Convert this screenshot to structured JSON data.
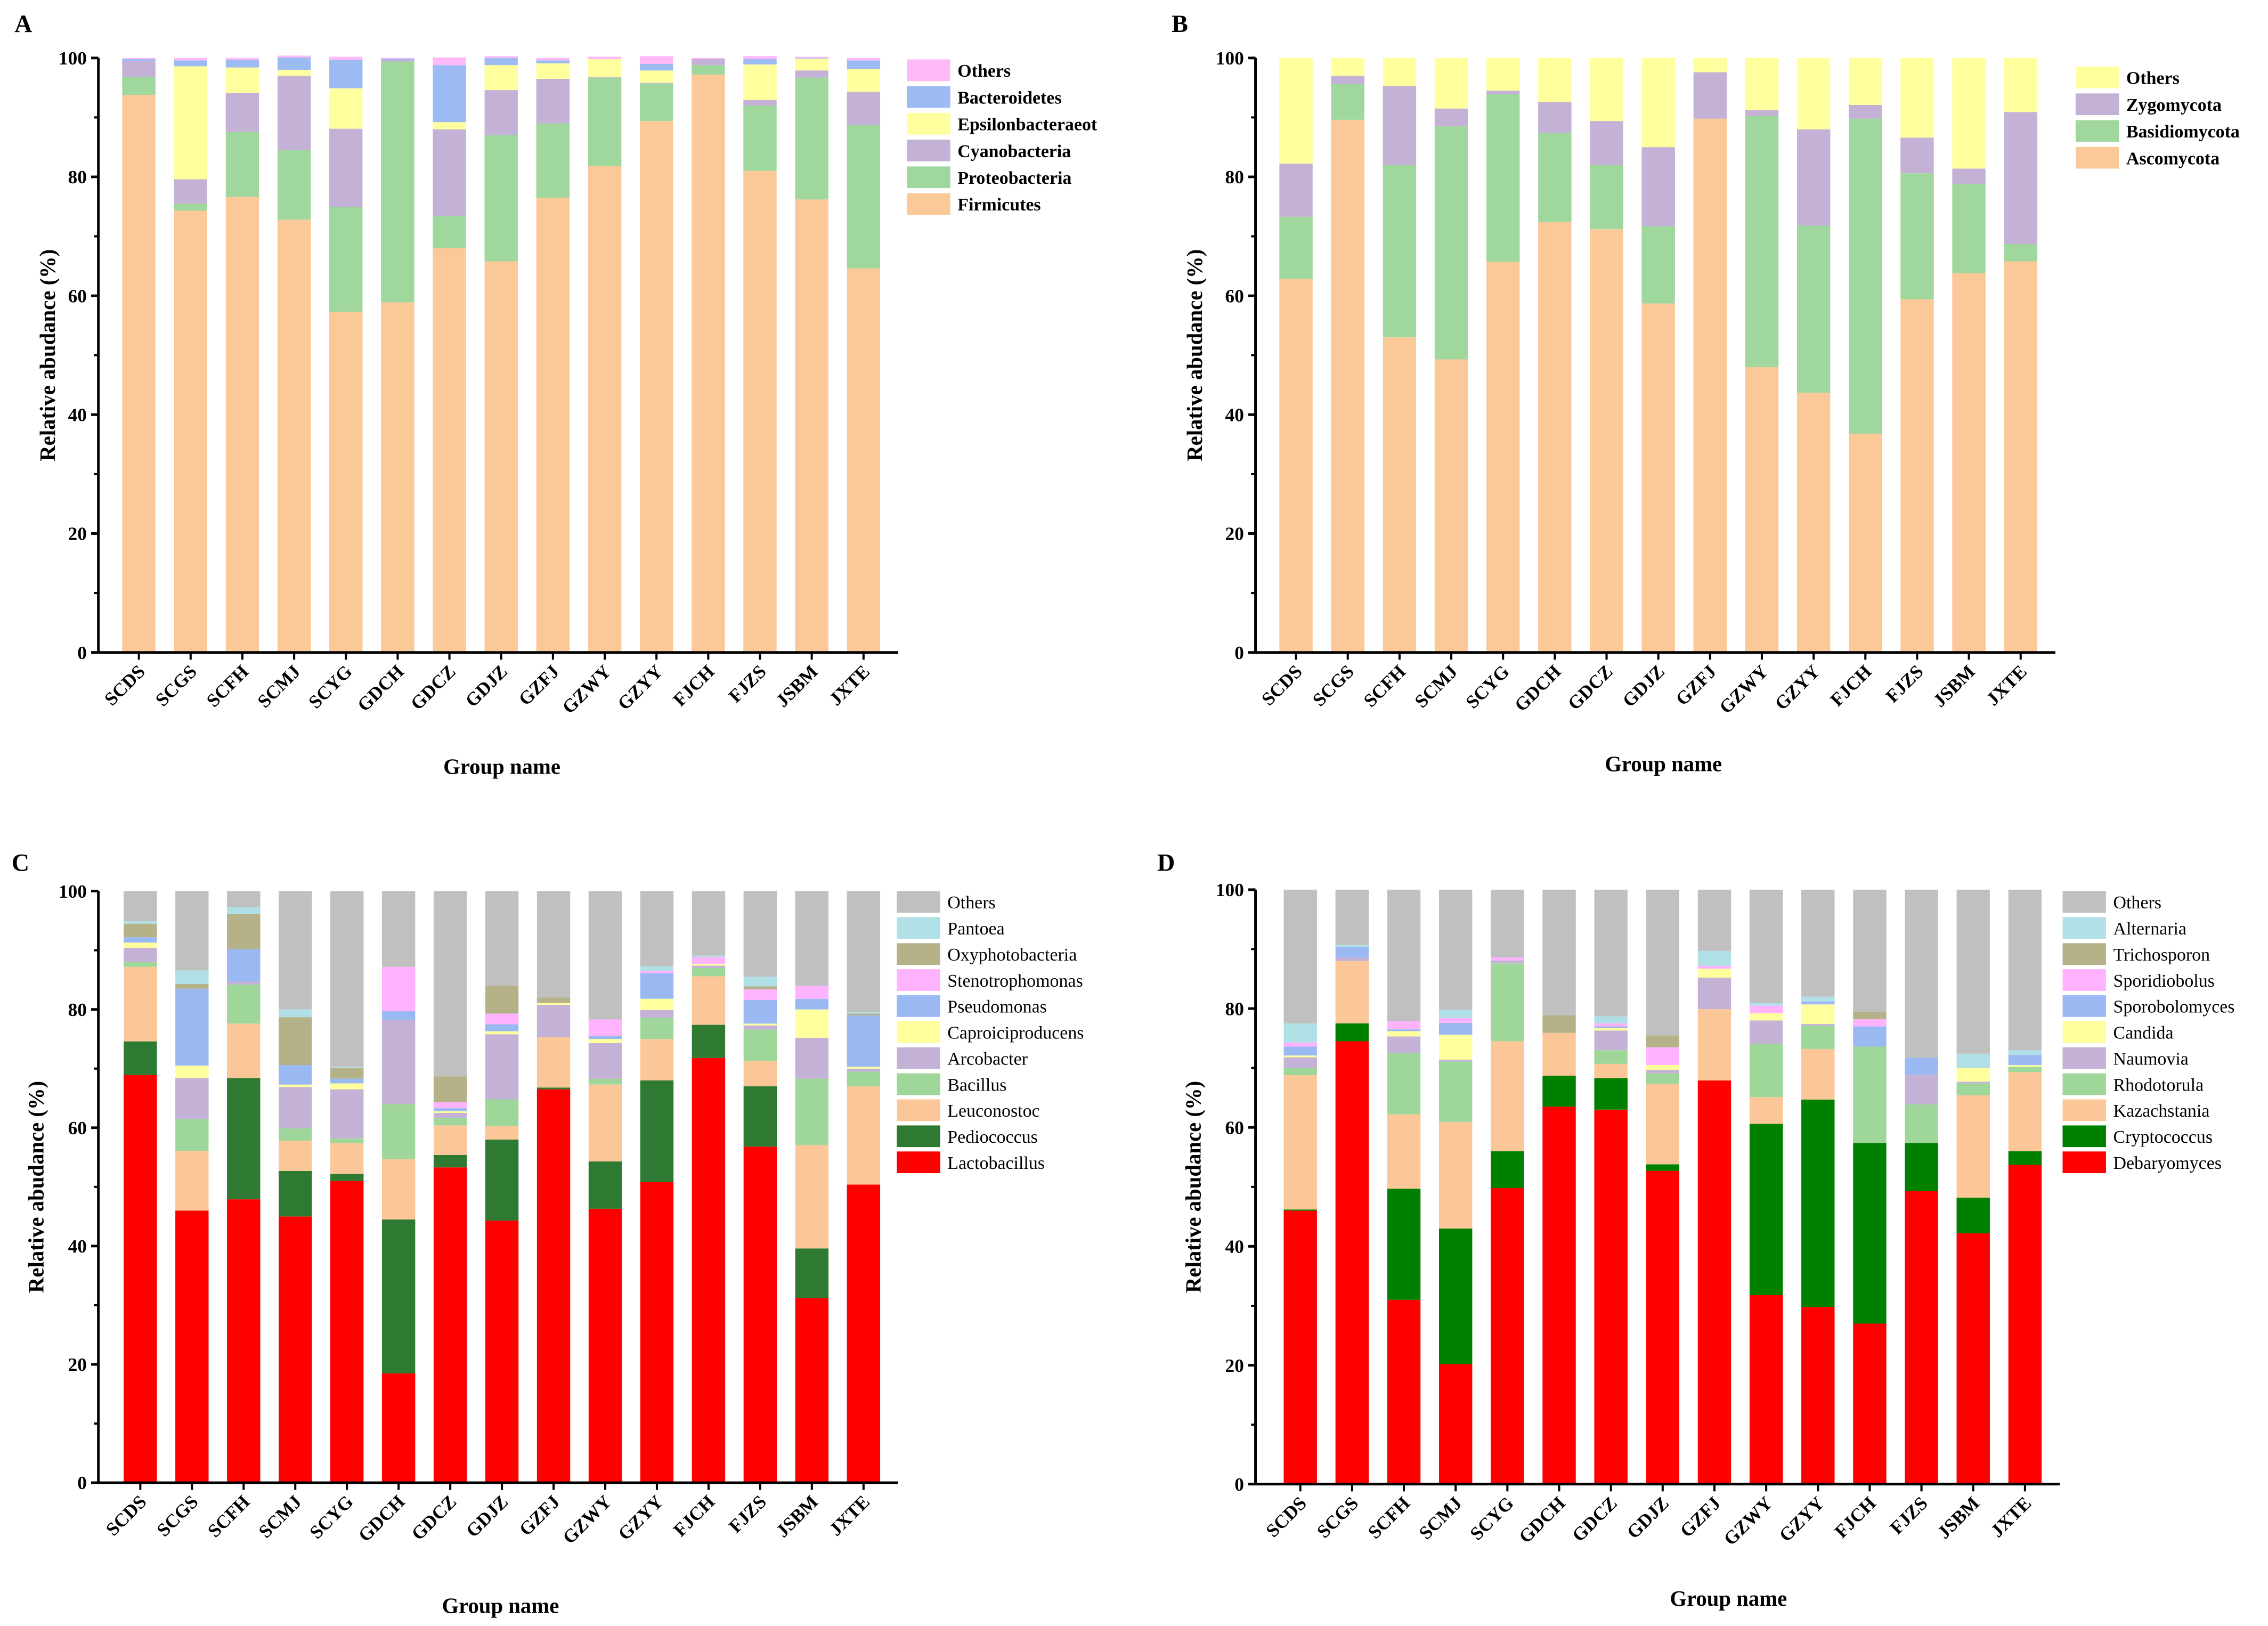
{
  "chart_data": [
    {
      "panel": "A",
      "type": "bar",
      "stacked": true,
      "xlabel": "Group name",
      "ylabel": "Relative abudance (%)",
      "ylim": [
        0,
        100
      ],
      "yticks": [
        0,
        20,
        40,
        60,
        80,
        100
      ],
      "legend_position": "right",
      "legend_bold": true,
      "categories": [
        "SCDS",
        "SCGS",
        "SCFH",
        "SCMJ",
        "SCYG",
        "GDCH",
        "GDCZ",
        "GDJZ",
        "GZFJ",
        "GZWY",
        "GZYY",
        "FJCH",
        "FJZS",
        "JSBM",
        "JXTE"
      ],
      "series": [
        {
          "name": "Firmicutes",
          "color": "#fbc898",
          "values": [
            93.8,
            74.3,
            76.6,
            72.8,
            57.3,
            58.9,
            68.0,
            65.8,
            76.5,
            81.8,
            89.4,
            97.2,
            81.0,
            76.2,
            64.6
          ]
        },
        {
          "name": "Proteobacteria",
          "color": "#9fd79d",
          "values": [
            3.0,
            1.2,
            11.0,
            11.7,
            17.6,
            40.5,
            5.4,
            21.2,
            12.5,
            14.9,
            6.3,
            1.6,
            11.0,
            20.5,
            24.1
          ]
        },
        {
          "name": "Cyanobacteria",
          "color": "#c4b1d6",
          "values": [
            2.7,
            4.1,
            6.5,
            12.5,
            13.2,
            0.3,
            14.6,
            7.6,
            7.5,
            0.1,
            0.1,
            1.0,
            0.9,
            1.2,
            5.6
          ]
        },
        {
          "name": "Epsilonbacteraeot",
          "color": "#ffff9e",
          "values": [
            0,
            19.0,
            4.3,
            1.0,
            6.8,
            0,
            1.2,
            4.2,
            2.6,
            3.0,
            2.1,
            0,
            6.0,
            2.0,
            3.8
          ]
        },
        {
          "name": "Bacteroidetes",
          "color": "#9dbbf3",
          "values": [
            0.3,
            1.0,
            1.3,
            2.1,
            4.8,
            0.2,
            9.6,
            1.2,
            0.5,
            0,
            1.1,
            0,
            0.9,
            0.1,
            1.5
          ]
        },
        {
          "name": "Others",
          "color": "#ffb8f8",
          "values": [
            0.2,
            0.4,
            0.3,
            0.3,
            0.5,
            0.1,
            1.3,
            0.3,
            0.4,
            0.4,
            1.3,
            0.2,
            0.5,
            0.2,
            0.4
          ]
        }
      ]
    },
    {
      "panel": "B",
      "type": "bar",
      "stacked": true,
      "xlabel": "Group name",
      "ylabel": "Relative abudance (%)",
      "ylim": [
        0,
        100
      ],
      "yticks": [
        0,
        20,
        40,
        60,
        80,
        100
      ],
      "legend_position": "right",
      "legend_bold": true,
      "categories": [
        "SCDS",
        "SCGS",
        "SCFH",
        "SCMJ",
        "SCYG",
        "GDCH",
        "GDCZ",
        "GDJZ",
        "GZFJ",
        "GZWY",
        "GZYY",
        "FJCH",
        "FJZS",
        "JSBM",
        "JXTE"
      ],
      "series": [
        {
          "name": "Ascomycota",
          "color": "#fbc898",
          "values": [
            62.8,
            89.6,
            53.0,
            49.3,
            65.7,
            72.4,
            71.2,
            58.7,
            89.8,
            48.0,
            43.7,
            36.8,
            59.4,
            63.8,
            65.8
          ]
        },
        {
          "name": "Basidiomycota",
          "color": "#9fd79d",
          "values": [
            10.5,
            6.0,
            29.0,
            39.2,
            28.2,
            15.0,
            10.8,
            13.0,
            0,
            42.3,
            28.1,
            53.0,
            21.2,
            15.0,
            2.9
          ]
        },
        {
          "name": "Zygomycota",
          "color": "#c4b1d6",
          "values": [
            8.9,
            1.4,
            13.3,
            3.0,
            0.6,
            5.2,
            7.4,
            13.3,
            7.8,
            0.9,
            16.2,
            2.3,
            6.0,
            2.6,
            22.2
          ]
        },
        {
          "name": "Others",
          "color": "#ffff9e",
          "values": [
            17.8,
            3.0,
            4.7,
            8.5,
            5.5,
            7.4,
            10.6,
            15.0,
            2.4,
            8.8,
            12.0,
            7.9,
            13.4,
            18.6,
            9.1
          ]
        }
      ]
    },
    {
      "panel": "C",
      "type": "bar",
      "stacked": true,
      "xlabel": "Group name",
      "ylabel": "Relative abudance (%)",
      "ylim": [
        0,
        100
      ],
      "yticks": [
        0,
        20,
        40,
        60,
        80,
        100
      ],
      "legend_position": "right",
      "legend_bold": false,
      "categories": [
        "SCDS",
        "SCGS",
        "SCFH",
        "SCMJ",
        "SCYG",
        "GDCH",
        "GDCZ",
        "GDJZ",
        "GZFJ",
        "GZWY",
        "GZYY",
        "FJCH",
        "FJZS",
        "JSBM",
        "JXTE"
      ],
      "series": [
        {
          "name": "Lactobacillus",
          "color": "#ff0000",
          "values": [
            68.9,
            46.0,
            47.9,
            45.0,
            51.0,
            18.5,
            53.3,
            44.3,
            66.5,
            46.3,
            50.8,
            71.8,
            56.8,
            31.2,
            50.4
          ]
        },
        {
          "name": "Pediococcus",
          "color": "#2f7a33",
          "values": [
            5.7,
            0,
            20.5,
            7.7,
            1.2,
            26.0,
            2.1,
            13.7,
            0.3,
            8.0,
            17.2,
            5.6,
            10.2,
            8.4,
            0
          ]
        },
        {
          "name": "Leuconostoc",
          "color": "#fcc798",
          "values": [
            12.6,
            10.1,
            9.2,
            5.1,
            5.2,
            10.2,
            5.0,
            2.3,
            8.5,
            13.0,
            7.0,
            8.2,
            4.3,
            17.5,
            16.6
          ]
        },
        {
          "name": "Bacillus",
          "color": "#9fd79b",
          "values": [
            0.8,
            5.4,
            6.6,
            2.1,
            0.8,
            9.3,
            1.3,
            4.5,
            0,
            1.0,
            3.6,
            1.4,
            5.3,
            11.2,
            2.5
          ]
        },
        {
          "name": "Arcobacter",
          "color": "#c4b1d6",
          "values": [
            2.4,
            6.9,
            0.5,
            7.0,
            8.3,
            14.2,
            0.8,
            11.0,
            5.5,
            6.0,
            1.3,
            0.4,
            0.7,
            6.9,
            0.5
          ]
        },
        {
          "name": "Caproiciproducens",
          "color": "#ffff9e",
          "values": [
            0.9,
            2.1,
            0,
            0.4,
            1.0,
            0,
            0.3,
            0.5,
            0.3,
            0.7,
            1.9,
            0.3,
            0.3,
            4.8,
            0.3
          ]
        },
        {
          "name": "Pseudomonas",
          "color": "#9ab9f3",
          "values": [
            0.9,
            13.0,
            5.5,
            3.3,
            0.8,
            1.5,
            0.5,
            1.2,
            0,
            0.5,
            4.3,
            0,
            4.0,
            1.8,
            8.7
          ]
        },
        {
          "name": "Stenotrophomonas",
          "color": "#ffb3ff",
          "values": [
            0,
            0,
            0,
            0,
            0,
            7.5,
            1.0,
            1.8,
            0,
            2.8,
            0.4,
            1.1,
            1.8,
            2.2,
            0
          ]
        },
        {
          "name": "Oxyphotobacteria",
          "color": "#b5b28a",
          "values": [
            2.3,
            0.8,
            5.9,
            8.1,
            1.8,
            0,
            4.4,
            4.7,
            0.9,
            0,
            0,
            0,
            0.5,
            0,
            0.3
          ]
        },
        {
          "name": "Pantoea",
          "color": "#b0e0e6",
          "values": [
            0.4,
            2.3,
            1.2,
            1.3,
            0.2,
            0,
            0,
            0,
            0,
            0,
            0.8,
            0.3,
            1.6,
            0,
            0.2
          ]
        },
        {
          "name": "Others",
          "color": "#c0c0c0",
          "values": [
            5.1,
            13.4,
            2.7,
            20.0,
            29.7,
            12.8,
            31.3,
            16.0,
            18.0,
            21.7,
            12.7,
            10.9,
            14.5,
            16.0,
            20.5
          ]
        }
      ]
    },
    {
      "panel": "D",
      "type": "bar",
      "stacked": true,
      "xlabel": "Group name",
      "ylabel": "Relative abudance (%)",
      "ylim": [
        0,
        100
      ],
      "yticks": [
        0,
        20,
        40,
        60,
        80,
        100
      ],
      "legend_position": "right",
      "legend_bold": false,
      "categories": [
        "SCDS",
        "SCGS",
        "SCFH",
        "SCMJ",
        "SCYG",
        "GDCH",
        "GDCZ",
        "GDJZ",
        "GZFJ",
        "GZWY",
        "GZYY",
        "FJCH",
        "FJZS",
        "JSBM",
        "JXTE"
      ],
      "series": [
        {
          "name": "Debaryomyces",
          "color": "#ff0000",
          "values": [
            46.0,
            74.5,
            31.0,
            20.2,
            49.8,
            63.5,
            63.0,
            52.7,
            67.9,
            31.8,
            29.8,
            27.0,
            49.3,
            42.2,
            53.7
          ]
        },
        {
          "name": "Cryptococcus",
          "color": "#008000",
          "values": [
            0.2,
            3.0,
            18.7,
            22.8,
            6.2,
            5.2,
            5.3,
            1.1,
            0,
            28.8,
            34.9,
            30.4,
            8.1,
            6.0,
            2.3
          ]
        },
        {
          "name": "Kazachstania",
          "color": "#fcc798",
          "values": [
            22.6,
            10.5,
            12.5,
            17.9,
            18.5,
            7.2,
            2.4,
            13.5,
            12.0,
            4.5,
            8.5,
            0,
            0,
            17.2,
            13.3
          ]
        },
        {
          "name": "Rhodotorula",
          "color": "#9fd79b",
          "values": [
            1.2,
            0,
            10.3,
            10.2,
            13.1,
            0,
            2.3,
            1.8,
            0,
            9.0,
            3.9,
            16.2,
            6.5,
            2.0,
            0.9
          ]
        },
        {
          "name": "Naumovia",
          "color": "#c4b1d6",
          "values": [
            1.8,
            0.6,
            2.8,
            0.3,
            0.5,
            0,
            3.3,
            0.6,
            5.3,
            3.9,
            0.3,
            0,
            5.0,
            0.3,
            0
          ]
        },
        {
          "name": "Candida",
          "color": "#ffff9e",
          "values": [
            0.3,
            0,
            0.9,
            4.2,
            0,
            0,
            0.4,
            0.8,
            1.5,
            1.2,
            3.3,
            0,
            0,
            2.3,
            0.3
          ]
        },
        {
          "name": "Sporobolomyces",
          "color": "#9ab9f3",
          "values": [
            1.5,
            1.8,
            0.3,
            2.0,
            0,
            0,
            0.3,
            0,
            0,
            0,
            0.5,
            3.4,
            2.8,
            0,
            1.7
          ]
        },
        {
          "name": "Sporidiobolus",
          "color": "#ffb3ff",
          "values": [
            0.7,
            0,
            1.4,
            0.8,
            0.5,
            0,
            0.5,
            3.0,
            0.5,
            1.3,
            0,
            1.2,
            0,
            0,
            0
          ]
        },
        {
          "name": "Trichosporon",
          "color": "#b5b28a",
          "values": [
            0,
            0,
            0,
            0,
            0,
            3.0,
            0,
            2.0,
            0,
            0,
            0,
            1.3,
            0,
            0,
            0
          ]
        },
        {
          "name": "Alternaria",
          "color": "#b0e0e6",
          "values": [
            3.2,
            0.3,
            0,
            1.4,
            0,
            0,
            1.2,
            0,
            2.5,
            0.4,
            0.8,
            0,
            0,
            2.4,
            0.8
          ]
        },
        {
          "name": "Others",
          "color": "#c0c0c0",
          "values": [
            22.5,
            9.3,
            22.1,
            20.2,
            11.4,
            21.1,
            21.3,
            24.5,
            10.3,
            19.1,
            18.0,
            20.5,
            28.3,
            27.6,
            27.0
          ]
        }
      ]
    }
  ]
}
